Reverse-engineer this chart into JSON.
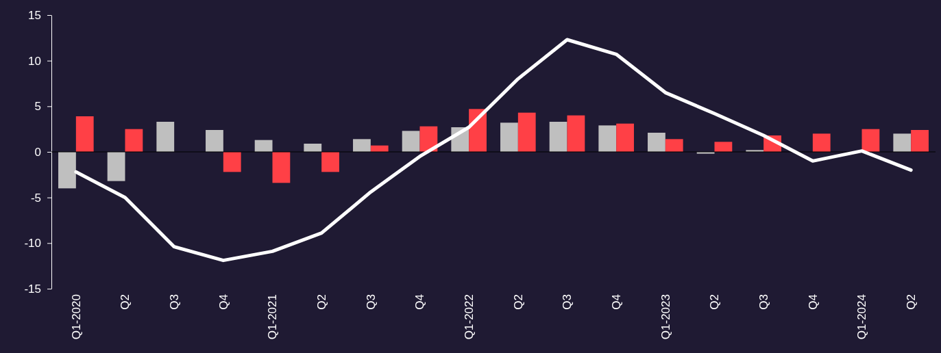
{
  "chart_data": {
    "type": "bar",
    "categories": [
      "Q1-2020",
      "Q2",
      "Q3",
      "Q4",
      "Q1-2021",
      "Q2",
      "Q3",
      "Q4",
      "Q1-2022",
      "Q2",
      "Q3",
      "Q4",
      "Q1-2023",
      "Q2",
      "Q3",
      "Q4",
      "Q1-2024",
      "Q2"
    ],
    "ylim": [
      -15,
      15
    ],
    "yticks": [
      -15,
      -10,
      -5,
      0,
      5,
      10,
      15
    ],
    "series": [
      {
        "color": "#bfbfbf",
        "values": [
          -4.0,
          -3.2,
          3.3,
          2.4,
          1.3,
          0.9,
          1.4,
          2.3,
          2.7,
          3.2,
          3.3,
          2.9,
          2.1,
          -0.2,
          0.2,
          null,
          null,
          2.0
        ]
      },
      {
        "color": "#ff4046",
        "values": [
          3.9,
          2.5,
          null,
          -2.2,
          -3.4,
          -2.2,
          0.7,
          2.8,
          4.7,
          4.3,
          4.0,
          3.1,
          1.4,
          1.1,
          1.8,
          2.0,
          2.5,
          2.4
        ]
      },
      {
        "type": "line",
        "color": "#ffffff",
        "values": [
          -2.2,
          -5.0,
          -10.4,
          -11.9,
          -10.9,
          -8.9,
          -4.4,
          -0.5,
          2.7,
          8.0,
          12.3,
          10.7,
          6.5,
          4.2,
          1.8,
          -1.0,
          0.1,
          -2.0
        ]
      }
    ]
  }
}
